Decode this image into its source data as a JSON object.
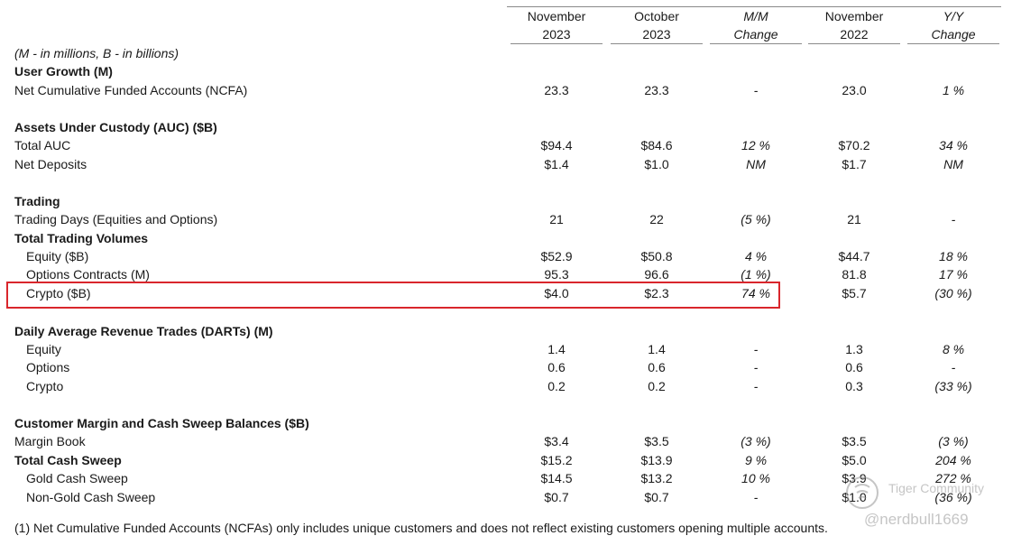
{
  "header": {
    "cols": [
      {
        "line1": "November",
        "line2": "2023",
        "italic": false
      },
      {
        "line1": "October",
        "line2": "2023",
        "italic": false
      },
      {
        "line1": "M/M",
        "line2": "Change",
        "italic": true
      },
      {
        "line1": "November",
        "line2": "2022",
        "italic": false
      },
      {
        "line1": "Y/Y",
        "line2": "Change",
        "italic": true
      }
    ]
  },
  "units_note": "(M - in millions, B - in billions)",
  "rows": [
    {
      "label": "User Growth (M)",
      "bold": true,
      "values": []
    },
    {
      "label": "Net Cumulative Funded Accounts (NCFA)",
      "values": [
        "23.3",
        "23.3",
        "-",
        "23.0",
        "1 %"
      ]
    },
    {
      "label": "Assets Under Custody (AUC) ($B)",
      "bold": true,
      "values": []
    },
    {
      "label": "Total AUC",
      "values": [
        "$94.4",
        "$84.6",
        "12 %",
        "$70.2",
        "34 %"
      ]
    },
    {
      "label": "Net Deposits",
      "values": [
        "$1.4",
        "$1.0",
        "NM",
        "$1.7",
        "NM"
      ]
    },
    {
      "label": "Trading",
      "bold": true,
      "values": []
    },
    {
      "label": "Trading Days (Equities and Options)",
      "values": [
        "21",
        "22",
        "(5 %)",
        "21",
        "-"
      ]
    },
    {
      "label": "Total Trading Volumes",
      "bold": true,
      "values": []
    },
    {
      "label": "Equity ($B)",
      "indent": true,
      "values": [
        "$52.9",
        "$50.8",
        "4 %",
        "$44.7",
        "18 %"
      ]
    },
    {
      "label": "Options Contracts (M)",
      "indent": true,
      "values": [
        "95.3",
        "96.6",
        "(1 %)",
        "81.8",
        "17 %"
      ]
    },
    {
      "label": "Crypto ($B)",
      "indent": true,
      "values": [
        "$4.0",
        "$2.3",
        "74 %",
        "$5.7",
        "(30 %)"
      ]
    },
    {
      "label": "Daily Average Revenue Trades (DARTs) (M)",
      "bold": true,
      "values": []
    },
    {
      "label": "Equity",
      "indent": true,
      "values": [
        "1.4",
        "1.4",
        "-",
        "1.3",
        "8 %"
      ]
    },
    {
      "label": "Options",
      "indent": true,
      "values": [
        "0.6",
        "0.6",
        "-",
        "0.6",
        "-"
      ]
    },
    {
      "label": "Crypto",
      "indent": true,
      "values": [
        "0.2",
        "0.2",
        "-",
        "0.3",
        "(33 %)"
      ]
    },
    {
      "label": "Customer Margin and Cash Sweep Balances ($B)",
      "bold": true,
      "values": []
    },
    {
      "label": "Margin Book",
      "values": [
        "$3.4",
        "$3.5",
        "(3 %)",
        "$3.5",
        "(3 %)"
      ]
    },
    {
      "label": "Total Cash Sweep",
      "bold": true,
      "values": [
        "$15.2",
        "$13.9",
        "9 %",
        "$5.0",
        "204 %"
      ]
    },
    {
      "label": "Gold Cash Sweep",
      "indent": true,
      "values": [
        "$14.5",
        "$13.2",
        "10 %",
        "$3.9",
        "272 %"
      ]
    },
    {
      "label": "Non-Gold Cash Sweep",
      "indent": true,
      "values": [
        "$0.7",
        "$0.7",
        "-",
        "$1.0",
        "(36 %)"
      ]
    }
  ],
  "footnote": "(1) Net Cumulative Funded Accounts (NCFAs) only includes unique customers and does not reflect existing customers opening multiple accounts.",
  "watermark": {
    "community": "Tiger Community",
    "user": "@nerdbull1669"
  },
  "colors": {
    "highlight": "#d9262c",
    "rule": "#8a8a8a"
  }
}
